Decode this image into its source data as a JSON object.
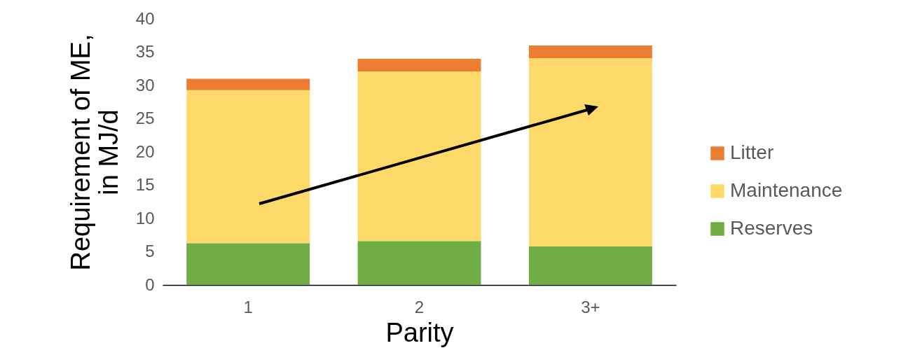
{
  "chart_data": {
    "type": "bar",
    "stacked": true,
    "xlabel": "Parity",
    "ylabel": "Requirement of ME, in MJ/d",
    "categories": [
      "1",
      "2",
      "3+"
    ],
    "series": [
      {
        "name": "Reserves",
        "color": "#70ad47",
        "values": [
          6.3,
          6.6,
          5.8
        ]
      },
      {
        "name": "Maintenance",
        "color": "#fdd96a",
        "values": [
          23.0,
          25.5,
          28.3
        ]
      },
      {
        "name": "Litter",
        "color": "#ed7d31",
        "values": [
          1.7,
          1.9,
          1.9
        ]
      }
    ],
    "ylim": [
      0,
      40
    ],
    "yticks": [
      0,
      5,
      10,
      15,
      20,
      25,
      30,
      35,
      40
    ],
    "grid": false,
    "legend": "right"
  }
}
